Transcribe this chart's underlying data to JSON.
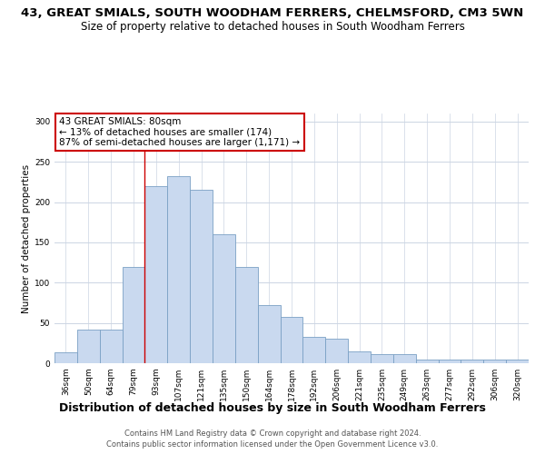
{
  "title": "43, GREAT SMIALS, SOUTH WOODHAM FERRERS, CHELMSFORD, CM3 5WN",
  "subtitle": "Size of property relative to detached houses in South Woodham Ferrers",
  "xlabel": "Distribution of detached houses by size in South Woodham Ferrers",
  "ylabel": "Number of detached properties",
  "categories": [
    "36sqm",
    "50sqm",
    "64sqm",
    "79sqm",
    "93sqm",
    "107sqm",
    "121sqm",
    "135sqm",
    "150sqm",
    "164sqm",
    "178sqm",
    "192sqm",
    "206sqm",
    "221sqm",
    "235sqm",
    "249sqm",
    "263sqm",
    "277sqm",
    "292sqm",
    "306sqm",
    "320sqm"
  ],
  "values": [
    13,
    42,
    42,
    120,
    220,
    232,
    215,
    160,
    120,
    72,
    58,
    33,
    30,
    15,
    11,
    11,
    5,
    5,
    4,
    5,
    5
  ],
  "bar_color": "#c9d9ef",
  "bar_edge_color": "#7aa0c4",
  "annotation_text": "43 GREAT SMIALS: 80sqm\n← 13% of detached houses are smaller (174)\n87% of semi-detached houses are larger (1,171) →",
  "annotation_box_color": "#ffffff",
  "annotation_box_edge": "#cc0000",
  "property_size_sqm": 80,
  "red_line_x": 3.5,
  "footer_line1": "Contains HM Land Registry data © Crown copyright and database right 2024.",
  "footer_line2": "Contains public sector information licensed under the Open Government Licence v3.0.",
  "ylim": [
    0,
    310
  ],
  "yticks": [
    0,
    50,
    100,
    150,
    200,
    250,
    300
  ],
  "title_fontsize": 9.5,
  "subtitle_fontsize": 8.5,
  "xlabel_fontsize": 9,
  "ylabel_fontsize": 7.5,
  "tick_fontsize": 6.5,
  "annotation_fontsize": 7.5,
  "footer_fontsize": 6,
  "background_color": "#ffffff",
  "grid_color": "#ccd5e3"
}
